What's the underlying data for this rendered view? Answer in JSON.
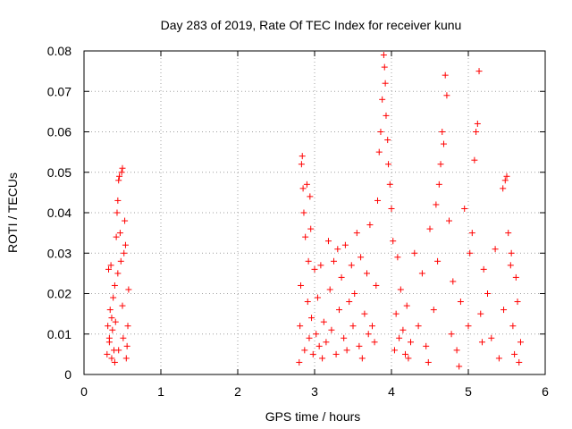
{
  "chart_data": {
    "type": "scatter",
    "title": "Day 283 of 2019, Rate Of TEC Index for receiver kunu",
    "xlabel": "GPS time / hours",
    "ylabel": "ROTI / TECUs",
    "xlim": [
      0,
      6
    ],
    "ylim": [
      0,
      0.08
    ],
    "xticks": [
      "0",
      "1",
      "2",
      "3",
      "4",
      "5",
      "6"
    ],
    "yticks": [
      "0",
      "0.01",
      "0.02",
      "0.03",
      "0.04",
      "0.05",
      "0.06",
      "0.07",
      "0.08"
    ],
    "grid": true,
    "marker": "+",
    "color": "#ff0000",
    "series": [
      {
        "name": "ROTI",
        "points": [
          [
            0.3,
            0.005
          ],
          [
            0.31,
            0.012
          ],
          [
            0.32,
            0.026
          ],
          [
            0.33,
            0.008
          ],
          [
            0.34,
            0.016
          ],
          [
            0.35,
            0.027
          ],
          [
            0.36,
            0.004
          ],
          [
            0.37,
            0.011
          ],
          [
            0.38,
            0.019
          ],
          [
            0.39,
            0.006
          ],
          [
            0.4,
            0.022
          ],
          [
            0.41,
            0.013
          ],
          [
            0.42,
            0.034
          ],
          [
            0.43,
            0.04
          ],
          [
            0.44,
            0.043
          ],
          [
            0.45,
            0.048
          ],
          [
            0.46,
            0.049
          ],
          [
            0.47,
            0.035
          ],
          [
            0.48,
            0.028
          ],
          [
            0.49,
            0.05
          ],
          [
            0.5,
            0.051
          ],
          [
            0.51,
            0.009
          ],
          [
            0.52,
            0.03
          ],
          [
            0.53,
            0.038
          ],
          [
            0.54,
            0.032
          ],
          [
            0.55,
            0.004
          ],
          [
            0.56,
            0.007
          ],
          [
            0.57,
            0.012
          ],
          [
            0.58,
            0.021
          ],
          [
            0.4,
            0.003
          ],
          [
            0.45,
            0.006
          ],
          [
            0.36,
            0.014
          ],
          [
            0.44,
            0.025
          ],
          [
            0.5,
            0.017
          ],
          [
            0.33,
            0.009
          ],
          [
            2.8,
            0.003
          ],
          [
            2.81,
            0.012
          ],
          [
            2.82,
            0.022
          ],
          [
            2.83,
            0.052
          ],
          [
            2.84,
            0.054
          ],
          [
            2.85,
            0.046
          ],
          [
            2.86,
            0.04
          ],
          [
            2.87,
            0.006
          ],
          [
            2.88,
            0.034
          ],
          [
            2.9,
            0.047
          ],
          [
            2.91,
            0.018
          ],
          [
            2.92,
            0.028
          ],
          [
            2.93,
            0.009
          ],
          [
            2.94,
            0.044
          ],
          [
            2.95,
            0.036
          ],
          [
            2.96,
            0.014
          ],
          [
            2.98,
            0.005
          ],
          [
            3.0,
            0.026
          ],
          [
            3.02,
            0.01
          ],
          [
            3.04,
            0.019
          ],
          [
            3.06,
            0.007
          ],
          [
            3.08,
            0.027
          ],
          [
            3.1,
            0.004
          ],
          [
            3.12,
            0.013
          ],
          [
            3.15,
            0.008
          ],
          [
            3.18,
            0.033
          ],
          [
            3.2,
            0.021
          ],
          [
            3.22,
            0.011
          ],
          [
            3.25,
            0.028
          ],
          [
            3.28,
            0.005
          ],
          [
            3.3,
            0.031
          ],
          [
            3.32,
            0.016
          ],
          [
            3.35,
            0.024
          ],
          [
            3.38,
            0.009
          ],
          [
            3.4,
            0.032
          ],
          [
            3.42,
            0.006
          ],
          [
            3.45,
            0.018
          ],
          [
            3.48,
            0.027
          ],
          [
            3.5,
            0.012
          ],
          [
            3.52,
            0.02
          ],
          [
            3.55,
            0.035
          ],
          [
            3.58,
            0.007
          ],
          [
            3.6,
            0.029
          ],
          [
            3.62,
            0.004
          ],
          [
            3.65,
            0.015
          ],
          [
            3.68,
            0.025
          ],
          [
            3.7,
            0.01
          ],
          [
            3.72,
            0.037
          ],
          [
            3.75,
            0.012
          ],
          [
            3.78,
            0.008
          ],
          [
            3.8,
            0.022
          ],
          [
            3.82,
            0.043
          ],
          [
            3.84,
            0.055
          ],
          [
            3.86,
            0.06
          ],
          [
            3.88,
            0.068
          ],
          [
            3.9,
            0.079
          ],
          [
            3.91,
            0.076
          ],
          [
            3.92,
            0.072
          ],
          [
            3.93,
            0.064
          ],
          [
            3.95,
            0.058
          ],
          [
            3.96,
            0.052
          ],
          [
            3.98,
            0.047
          ],
          [
            4.0,
            0.041
          ],
          [
            4.02,
            0.033
          ],
          [
            4.04,
            0.006
          ],
          [
            4.06,
            0.015
          ],
          [
            4.08,
            0.029
          ],
          [
            4.1,
            0.009
          ],
          [
            4.12,
            0.021
          ],
          [
            4.15,
            0.011
          ],
          [
            4.18,
            0.005
          ],
          [
            4.2,
            0.017
          ],
          [
            4.25,
            0.008
          ],
          [
            4.3,
            0.03
          ],
          [
            4.35,
            0.012
          ],
          [
            4.4,
            0.025
          ],
          [
            4.45,
            0.007
          ],
          [
            4.5,
            0.036
          ],
          [
            4.55,
            0.016
          ],
          [
            4.58,
            0.042
          ],
          [
            4.6,
            0.028
          ],
          [
            4.62,
            0.047
          ],
          [
            4.64,
            0.052
          ],
          [
            4.66,
            0.06
          ],
          [
            4.68,
            0.057
          ],
          [
            4.7,
            0.074
          ],
          [
            4.72,
            0.069
          ],
          [
            4.75,
            0.038
          ],
          [
            4.78,
            0.01
          ],
          [
            4.8,
            0.023
          ],
          [
            4.85,
            0.006
          ],
          [
            4.9,
            0.018
          ],
          [
            4.95,
            0.041
          ],
          [
            5.0,
            0.012
          ],
          [
            5.02,
            0.03
          ],
          [
            5.05,
            0.035
          ],
          [
            5.08,
            0.053
          ],
          [
            5.1,
            0.06
          ],
          [
            5.12,
            0.062
          ],
          [
            5.14,
            0.075
          ],
          [
            5.16,
            0.015
          ],
          [
            5.18,
            0.008
          ],
          [
            5.2,
            0.026
          ],
          [
            5.25,
            0.02
          ],
          [
            5.3,
            0.009
          ],
          [
            5.35,
            0.031
          ],
          [
            5.4,
            0.004
          ],
          [
            5.45,
            0.046
          ],
          [
            5.48,
            0.048
          ],
          [
            5.5,
            0.049
          ],
          [
            5.52,
            0.035
          ],
          [
            5.55,
            0.027
          ],
          [
            5.58,
            0.012
          ],
          [
            5.6,
            0.005
          ],
          [
            5.62,
            0.024
          ],
          [
            5.64,
            0.018
          ],
          [
            5.66,
            0.003
          ],
          [
            5.68,
            0.008
          ],
          [
            5.56,
            0.03
          ],
          [
            5.46,
            0.016
          ],
          [
            4.48,
            0.003
          ],
          [
            4.22,
            0.004
          ],
          [
            4.88,
            0.002
          ]
        ]
      }
    ]
  }
}
